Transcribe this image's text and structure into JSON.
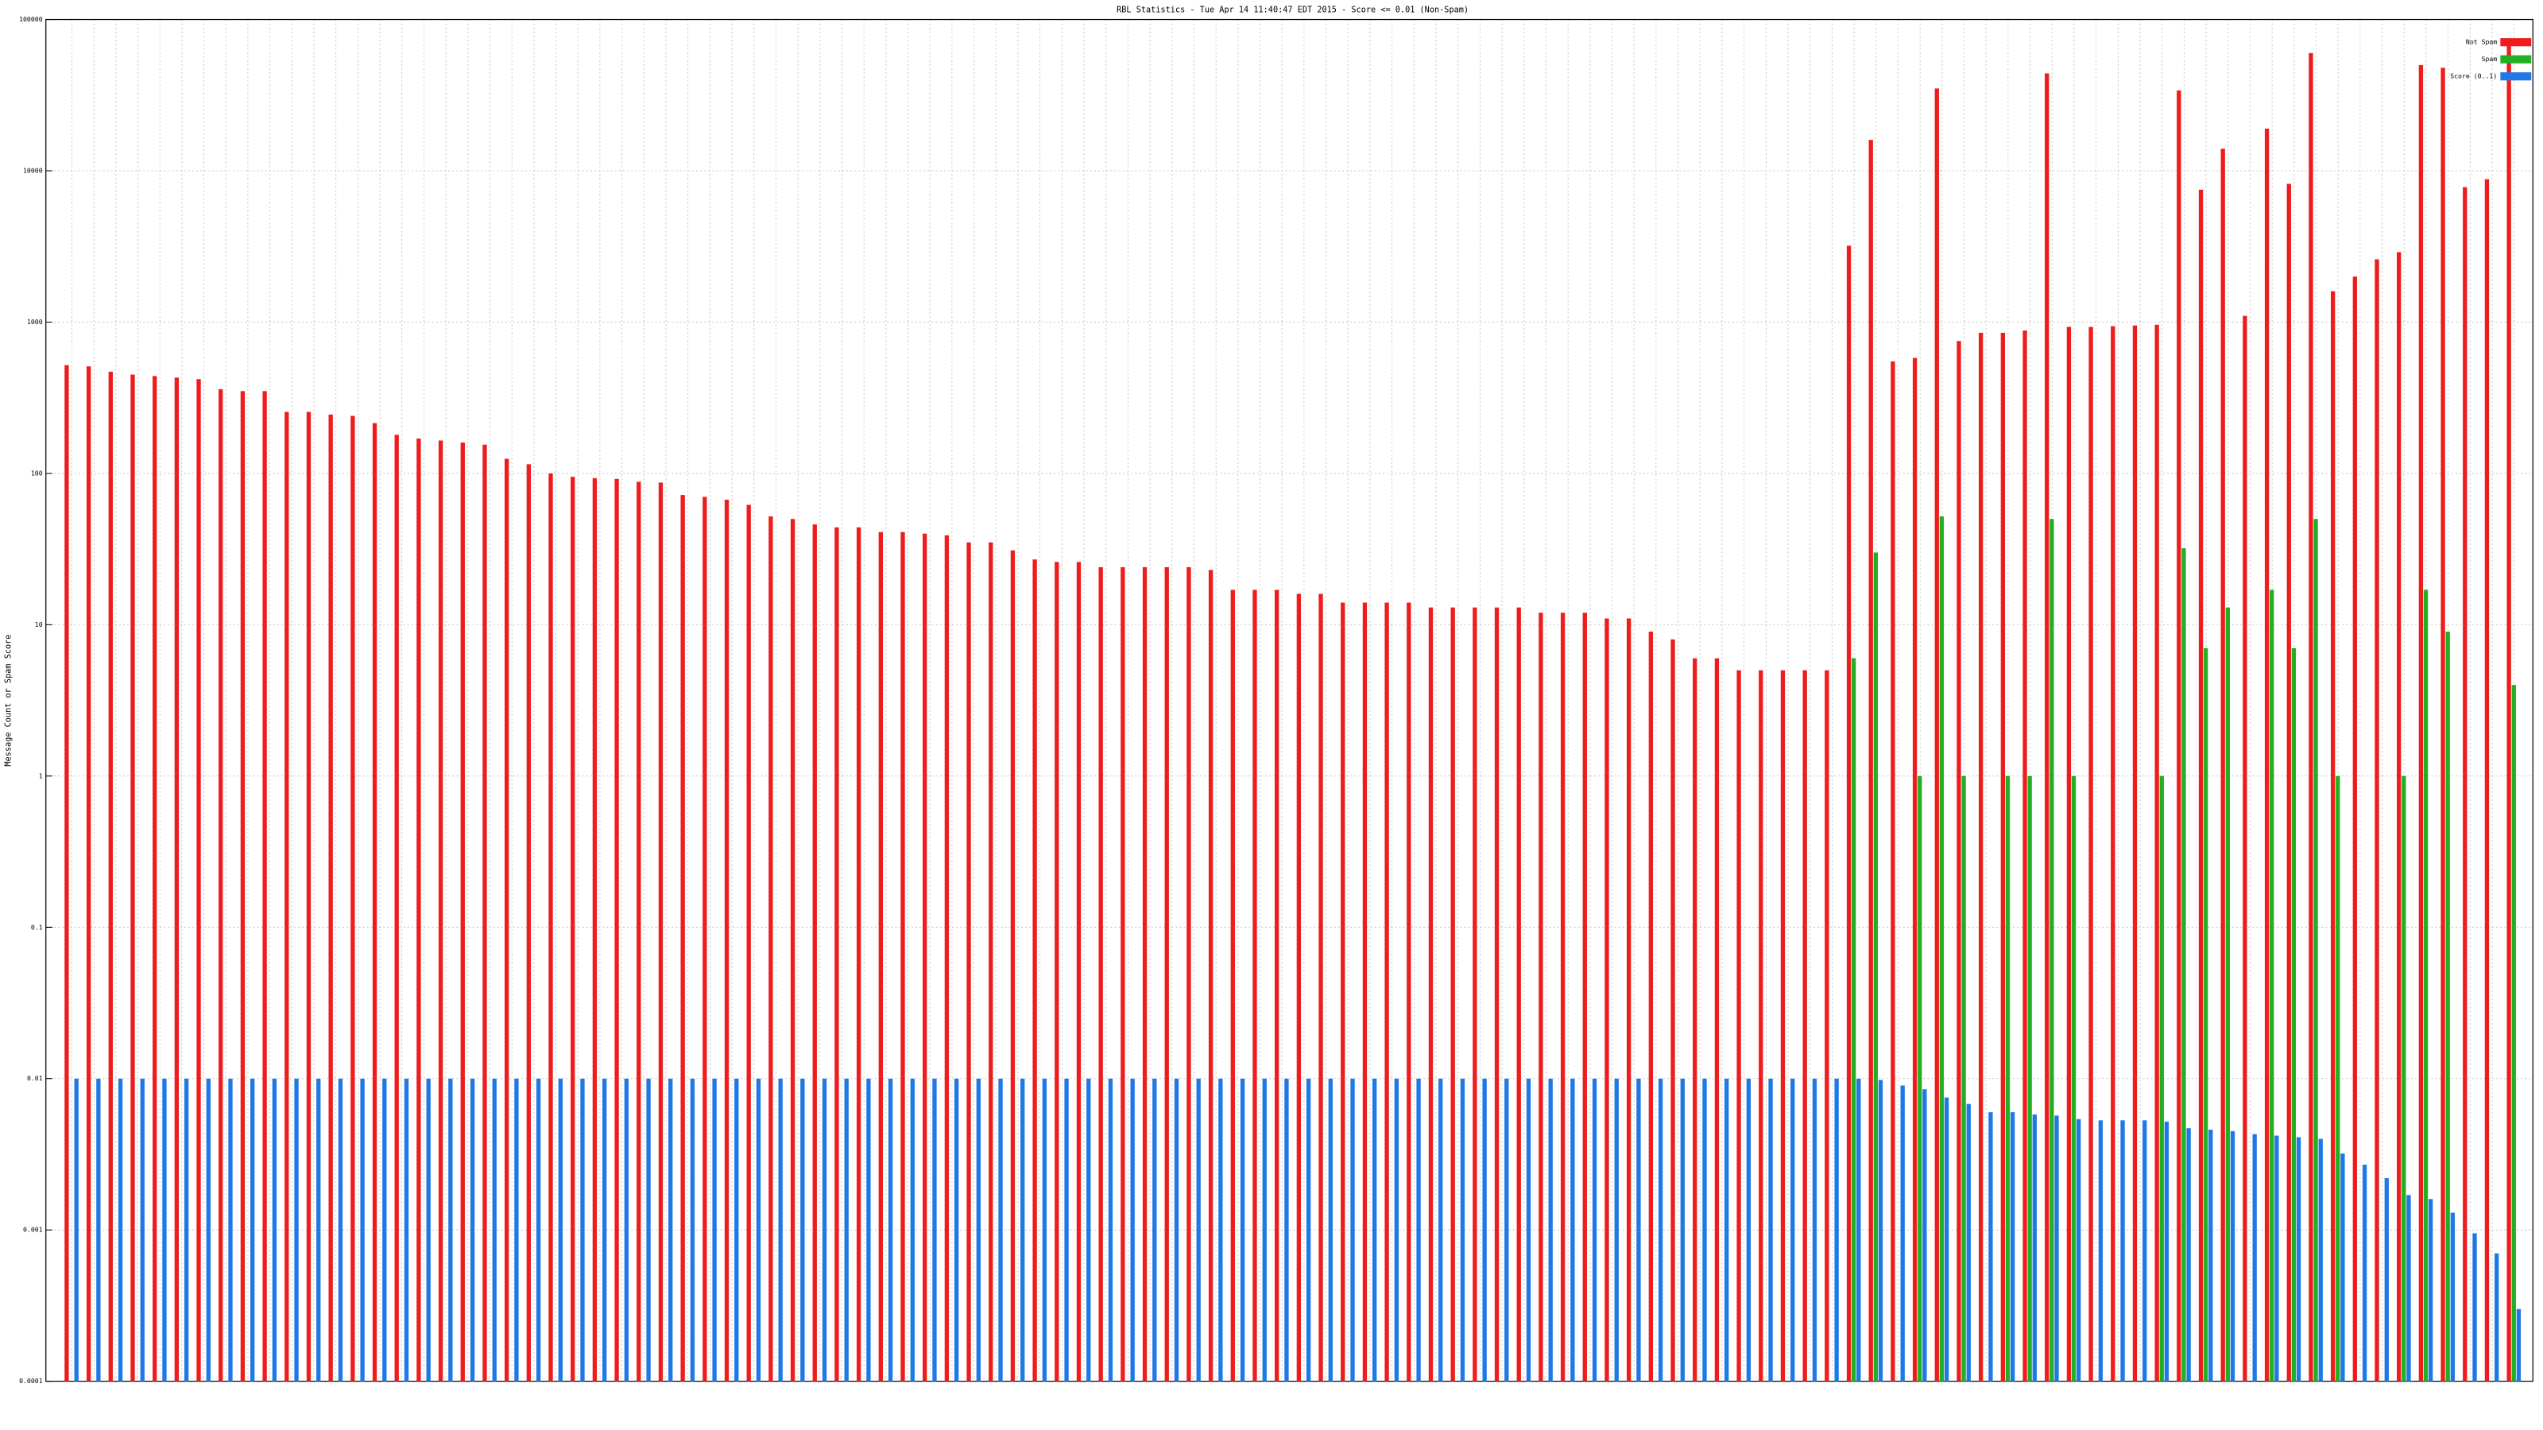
{
  "chart_data": {
    "type": "bar",
    "title": "RBL Statistics - Tue Apr 14 11:40:47 EDT 2015 - Score <= 0.01 (Non-Spam)",
    "y_label": "Message Count or Spam Score",
    "log_scale": true,
    "grid": true,
    "legend": "top-right",
    "ylim": [
      0.0001,
      100000
    ],
    "yticks": [
      0.0001,
      0.001,
      0.01,
      0.1,
      1,
      10,
      100,
      1000,
      10000,
      100000
    ],
    "categories": [
      null,
      null,
      null,
      null,
      null,
      null,
      null,
      null,
      null,
      null,
      null,
      null,
      null,
      null,
      null,
      null,
      null,
      null,
      null,
      null,
      null,
      null,
      null,
      null,
      null,
      null,
      null,
      null,
      null,
      null,
      null,
      null,
      null,
      null,
      null,
      null,
      null,
      null,
      null,
      null,
      null,
      null,
      null,
      null,
      null,
      null,
      null,
      null,
      null,
      null,
      null,
      null,
      null,
      null,
      null,
      null,
      null,
      null,
      null,
      null,
      null,
      null,
      null,
      null,
      null,
      null,
      null,
      null,
      null,
      null,
      null,
      null,
      null,
      null,
      null,
      null,
      null,
      null,
      null,
      null,
      null,
      null,
      null,
      null,
      null,
      null,
      null,
      null,
      null,
      null,
      null,
      null,
      null,
      null,
      null,
      null,
      null,
      null,
      null,
      null,
      null,
      null,
      null,
      null,
      null,
      null,
      null,
      null,
      null,
      null,
      null,
      null
    ],
    "series": [
      {
        "name": "Not Spam",
        "color": "#ee1c1c",
        "values": [
          520,
          510,
          470,
          450,
          440,
          430,
          420,
          360,
          350,
          350,
          255,
          255,
          245,
          240,
          215,
          180,
          170,
          165,
          160,
          155,
          125,
          115,
          100,
          95,
          93,
          92,
          88,
          87,
          72,
          70,
          67,
          62,
          52,
          50,
          46,
          44,
          44,
          41,
          41,
          40,
          39,
          35,
          35,
          31,
          27,
          26,
          26,
          24,
          24,
          24,
          24,
          24,
          23,
          17,
          17,
          17,
          16,
          16,
          14,
          14,
          14,
          14,
          13,
          13,
          13,
          13,
          13,
          12,
          12,
          12,
          11,
          11,
          9,
          8,
          6,
          6,
          5,
          5,
          5,
          5,
          5,
          3200,
          16000,
          550,
          580,
          35000,
          750,
          850,
          850,
          880,
          44000,
          930,
          930,
          940,
          950,
          960,
          34000,
          7500,
          14000,
          1100,
          19000,
          8200,
          60000,
          1600,
          2000,
          2600,
          2900,
          50000,
          48000,
          7800,
          8800,
          70000
        ]
      },
      {
        "name": "Spam",
        "color": "#22b022",
        "values": [
          null,
          null,
          null,
          null,
          null,
          null,
          null,
          null,
          null,
          null,
          null,
          null,
          null,
          null,
          null,
          null,
          null,
          null,
          null,
          null,
          null,
          null,
          null,
          null,
          null,
          null,
          null,
          null,
          null,
          null,
          null,
          null,
          null,
          null,
          null,
          null,
          null,
          null,
          null,
          null,
          null,
          null,
          null,
          null,
          null,
          null,
          null,
          null,
          null,
          null,
          null,
          null,
          null,
          null,
          null,
          null,
          null,
          null,
          null,
          null,
          null,
          null,
          null,
          null,
          null,
          null,
          null,
          null,
          null,
          null,
          null,
          null,
          null,
          null,
          null,
          null,
          null,
          null,
          null,
          null,
          null,
          6,
          30,
          null,
          1,
          52,
          1,
          null,
          1,
          1,
          50,
          1,
          null,
          null,
          null,
          1,
          32,
          7,
          13,
          null,
          17,
          7,
          50,
          1,
          null,
          null,
          1,
          17,
          9,
          null,
          null,
          4
        ]
      },
      {
        "name": "Score (0..1)",
        "color": "#1e78e6",
        "values": [
          0.01,
          0.01,
          0.01,
          0.01,
          0.01,
          0.01,
          0.01,
          0.01,
          0.01,
          0.01,
          0.01,
          0.01,
          0.01,
          0.01,
          0.01,
          0.01,
          0.01,
          0.01,
          0.01,
          0.01,
          0.01,
          0.01,
          0.01,
          0.01,
          0.01,
          0.01,
          0.01,
          0.01,
          0.01,
          0.01,
          0.01,
          0.01,
          0.01,
          0.01,
          0.01,
          0.01,
          0.01,
          0.01,
          0.01,
          0.01,
          0.01,
          0.01,
          0.01,
          0.01,
          0.01,
          0.01,
          0.01,
          0.01,
          0.01,
          0.01,
          0.01,
          0.01,
          0.01,
          0.01,
          0.01,
          0.01,
          0.01,
          0.01,
          0.01,
          0.01,
          0.01,
          0.01,
          0.01,
          0.01,
          0.01,
          0.01,
          0.01,
          0.01,
          0.01,
          0.01,
          0.01,
          0.01,
          0.01,
          0.01,
          0.01,
          0.01,
          0.01,
          0.01,
          0.01,
          0.01,
          0.01,
          0.01,
          0.0098,
          0.009,
          0.0085,
          0.0075,
          0.0068,
          0.006,
          0.006,
          0.0058,
          0.0057,
          0.0054,
          0.0053,
          0.0053,
          0.0053,
          0.0052,
          0.0047,
          0.0046,
          0.0045,
          0.0043,
          0.0042,
          0.0041,
          0.004,
          0.0032,
          0.0027,
          0.0022,
          0.0017,
          0.0016,
          0.0013,
          0.00095,
          0.0007,
          0.0003
        ]
      }
    ]
  }
}
